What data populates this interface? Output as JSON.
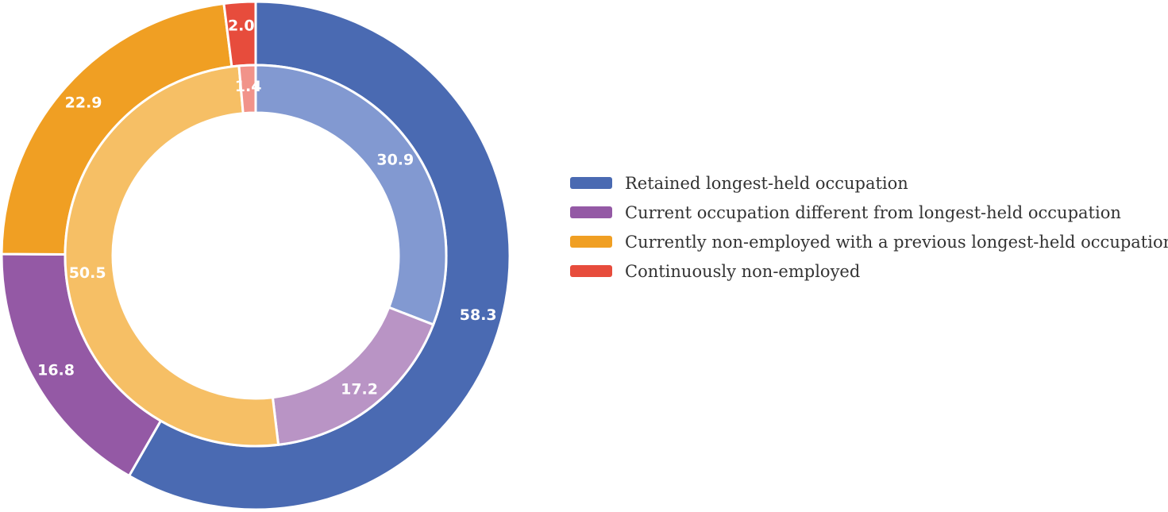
{
  "chart_data": {
    "type": "pie",
    "subtype": "nested-donut",
    "title": "",
    "legend": {
      "position": "right",
      "entries": [
        "Retained longest-held occupation",
        "Current occupation different from longest-held occupation",
        "Currently non-employed with a previous longest-held occupation",
        "Continuously non-employed"
      ]
    },
    "categories": [
      "Retained longest-held occupation",
      "Current occupation different from longest-held occupation",
      "Currently non-employed with a previous longest-held occupation",
      "Continuously non-employed"
    ],
    "series": [
      {
        "ring": "outer",
        "values": [
          58.3,
          16.8,
          22.9,
          2.0
        ],
        "labels": [
          "58.3",
          "16.8",
          "22.9",
          "2.0"
        ],
        "colors": [
          "#4a6ab2",
          "#9459a5",
          "#f09f23",
          "#e74c3c"
        ]
      },
      {
        "ring": "inner",
        "values": [
          30.9,
          17.2,
          50.5,
          1.4
        ],
        "labels": [
          "30.9",
          "17.2",
          "50.5",
          "1.4"
        ],
        "colors": [
          "#8299d1",
          "#b994c5",
          "#f6bf65",
          "#f1938a"
        ]
      }
    ],
    "legend_colors": [
      "#4a6ab2",
      "#9459a5",
      "#f09f23",
      "#e74c3c"
    ]
  }
}
